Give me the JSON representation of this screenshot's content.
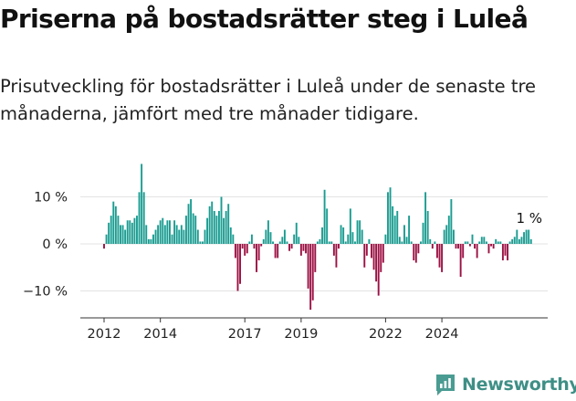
{
  "header": {
    "title": "Priserna på bostadsrätter steg i Luleå",
    "subtitle": "Prisutveckling för bostadsrätter i Luleå under de senaste tre månaderna, jämfört med tre månader tidigare."
  },
  "brand": {
    "name": "Newsworthy",
    "icon": "newsworthy-logo-icon"
  },
  "colors": {
    "positive": "#1a9c91",
    "negative": "#9c1143",
    "axis": "#333333",
    "grid": "#e3e3e3",
    "brand": "#3e8f86"
  },
  "chart_data": {
    "type": "bar",
    "title": "",
    "xlabel": "",
    "ylabel": "",
    "ylim": [
      -15,
      18
    ],
    "grid": true,
    "x_ticks": [
      "2012",
      "2014",
      "2017",
      "2019",
      "2022",
      "2024"
    ],
    "y_ticks": [
      "10 %",
      "0 %",
      "−10 %"
    ],
    "y_tick_values": [
      10,
      0,
      -10
    ],
    "annotation": "1 %",
    "start": "2012-01",
    "values": [
      -1,
      2,
      4.5,
      6,
      9,
      8,
      6,
      4,
      4,
      3,
      5,
      5,
      4.5,
      5.5,
      6,
      11,
      17,
      11,
      4,
      1,
      1,
      2,
      3,
      4,
      5,
      5.5,
      4,
      5,
      5,
      2,
      5,
      4,
      3,
      4,
      3,
      6,
      8.5,
      9.5,
      6.5,
      6,
      3,
      0.5,
      0.5,
      3,
      5.5,
      8,
      9,
      7,
      6,
      7,
      10,
      5.5,
      7,
      8.5,
      3.5,
      2,
      -3,
      -10,
      -8.5,
      -1,
      -2.5,
      -2,
      0.5,
      2,
      -1,
      -6,
      -3.5,
      -0.5,
      1,
      3,
      5,
      2.5,
      0.5,
      -3,
      -3,
      0.5,
      1.5,
      3,
      0.5,
      -1.5,
      -1,
      2,
      4.5,
      1.5,
      -2.5,
      -1.5,
      -2,
      -9.5,
      -14,
      -12,
      -6,
      0.5,
      1,
      3.5,
      11.5,
      7.5,
      0.5,
      0.5,
      -2.5,
      -5,
      -1,
      4,
      3.5,
      0.5,
      2,
      7.5,
      2.5,
      0.5,
      5,
      5,
      3,
      -5,
      -2.5,
      1,
      -3,
      -5.5,
      -8,
      -11,
      -6,
      -4,
      2,
      11,
      12,
      8,
      6,
      7,
      1.5,
      0.5,
      4,
      1.5,
      6,
      0.5,
      -3.5,
      -4,
      -2,
      0.5,
      4.5,
      11,
      7,
      1,
      -1,
      0.5,
      -3,
      -5,
      -6,
      3,
      4,
      6,
      9.5,
      3,
      -1,
      -1,
      -7,
      -3,
      0.5,
      0.5,
      -0.5,
      2,
      -1,
      -3,
      0.5,
      1.5,
      1.5,
      0.5,
      -2,
      -0.5,
      -1,
      1,
      0.5,
      0.5,
      -3.5,
      -2.5,
      -3.5,
      0.5,
      1,
      1.5,
      3,
      1,
      1.5,
      2.5,
      3,
      3,
      1
    ]
  }
}
